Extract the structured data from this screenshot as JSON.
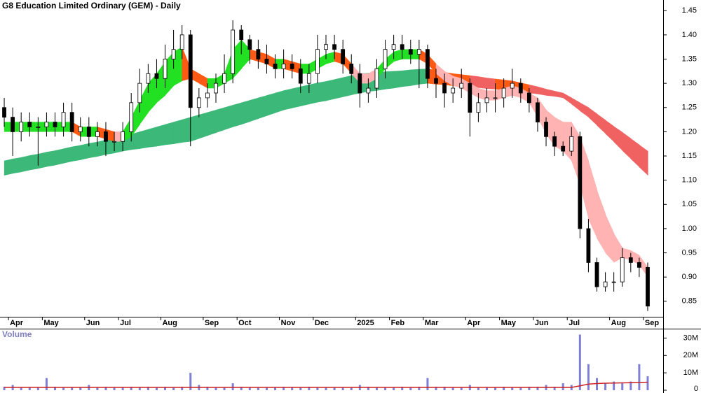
{
  "chart_data": {
    "type": "candlestick",
    "title": "G8 Education Limited Ordinary (GEM) - Daily",
    "categories": [
      null,
      "Apr",
      null,
      null,
      null,
      "May",
      null,
      null,
      null,
      null,
      "Jun",
      null,
      null,
      null,
      "Jul",
      null,
      null,
      null,
      null,
      "Aug",
      null,
      null,
      null,
      null,
      "Sep",
      null,
      null,
      null,
      "Oct",
      null,
      null,
      null,
      null,
      "Nov",
      null,
      null,
      null,
      "Dec",
      null,
      null,
      null,
      null,
      "2025",
      null,
      null,
      null,
      "Feb",
      null,
      null,
      null,
      "Mar",
      null,
      null,
      null,
      null,
      "Apr",
      null,
      null,
      null,
      "May",
      null,
      null,
      null,
      "Jun",
      null,
      null,
      null,
      "Jul",
      null,
      null,
      null,
      null,
      "Aug",
      null,
      null,
      null,
      "Sep"
    ],
    "open": [
      1.25,
      1.23,
      1.2,
      1.22,
      1.21,
      1.21,
      1.22,
      1.21,
      1.24,
      1.2,
      1.21,
      1.19,
      1.2,
      1.18,
      1.18,
      1.2,
      1.26,
      1.3,
      1.32,
      1.31,
      1.35,
      1.37,
      1.4,
      1.25,
      1.27,
      1.28,
      1.3,
      1.32,
      1.41,
      1.39,
      1.37,
      1.35,
      1.34,
      1.33,
      1.34,
      1.33,
      1.3,
      1.32,
      1.37,
      1.38,
      1.37,
      1.34,
      1.32,
      1.28,
      1.29,
      1.33,
      1.37,
      1.38,
      1.37,
      1.36,
      1.37,
      1.31,
      1.3,
      1.28,
      1.29,
      1.3,
      1.24,
      1.26,
      1.27,
      1.27,
      1.29,
      1.3,
      1.28,
      1.26,
      1.22,
      1.19,
      1.17,
      1.16,
      1.19,
      1.0,
      0.93,
      0.88,
      0.89,
      0.89,
      0.94,
      0.93,
      0.92
    ],
    "high": [
      1.27,
      1.25,
      1.24,
      1.24,
      1.23,
      1.24,
      1.24,
      1.26,
      1.26,
      1.23,
      1.23,
      1.22,
      1.22,
      1.2,
      1.22,
      1.28,
      1.33,
      1.34,
      1.35,
      1.38,
      1.41,
      1.42,
      1.41,
      1.29,
      1.3,
      1.32,
      1.36,
      1.43,
      1.42,
      1.4,
      1.39,
      1.38,
      1.36,
      1.37,
      1.36,
      1.35,
      1.34,
      1.4,
      1.4,
      1.4,
      1.39,
      1.36,
      1.34,
      1.31,
      1.35,
      1.39,
      1.4,
      1.4,
      1.39,
      1.39,
      1.38,
      1.33,
      1.32,
      1.31,
      1.33,
      1.31,
      1.28,
      1.29,
      1.3,
      1.31,
      1.33,
      1.31,
      1.29,
      1.27,
      1.23,
      1.2,
      1.18,
      1.21,
      1.2,
      1.02,
      0.94,
      0.91,
      0.91,
      0.96,
      0.95,
      0.94,
      0.93
    ],
    "low": [
      1.21,
      1.15,
      1.18,
      1.19,
      1.13,
      1.19,
      1.19,
      1.19,
      1.18,
      1.18,
      1.17,
      1.17,
      1.15,
      1.16,
      1.16,
      1.18,
      1.24,
      1.28,
      1.29,
      1.29,
      1.33,
      1.35,
      1.17,
      1.23,
      1.25,
      1.26,
      1.28,
      1.3,
      1.36,
      1.34,
      1.33,
      1.32,
      1.31,
      1.31,
      1.31,
      1.28,
      1.28,
      1.3,
      1.35,
      1.35,
      1.32,
      1.3,
      1.25,
      1.26,
      1.27,
      1.31,
      1.35,
      1.35,
      1.34,
      1.29,
      1.29,
      1.27,
      1.25,
      1.26,
      1.27,
      1.19,
      1.22,
      1.24,
      1.24,
      1.25,
      1.27,
      1.26,
      1.24,
      1.2,
      1.17,
      1.15,
      1.15,
      1.15,
      0.98,
      0.91,
      0.87,
      0.87,
      0.87,
      0.88,
      0.91,
      0.9,
      0.83
    ],
    "close": [
      1.23,
      1.2,
      1.22,
      1.21,
      1.21,
      1.22,
      1.21,
      1.24,
      1.2,
      1.21,
      1.19,
      1.2,
      1.18,
      1.18,
      1.2,
      1.26,
      1.3,
      1.32,
      1.31,
      1.35,
      1.37,
      1.4,
      1.25,
      1.27,
      1.28,
      1.3,
      1.32,
      1.41,
      1.39,
      1.37,
      1.35,
      1.34,
      1.33,
      1.34,
      1.33,
      1.3,
      1.32,
      1.37,
      1.38,
      1.37,
      1.34,
      1.32,
      1.28,
      1.29,
      1.33,
      1.37,
      1.38,
      1.37,
      1.36,
      1.37,
      1.31,
      1.3,
      1.28,
      1.29,
      1.3,
      1.24,
      1.26,
      1.27,
      1.27,
      1.29,
      1.3,
      1.28,
      1.26,
      1.22,
      1.19,
      1.17,
      1.16,
      1.19,
      1.0,
      0.93,
      0.88,
      0.89,
      0.89,
      0.94,
      0.93,
      0.92,
      0.84
    ],
    "up_color": "#ffffff",
    "down_color": "#000000",
    "wick_color": "#000000",
    "ylim": [
      0.818,
      1.472
    ],
    "yticks": [
      1.45,
      {
        "value": 1.4,
        "label": "1.40"
      },
      1.35,
      {
        "value": 1.3,
        "label": "1.30"
      },
      1.25,
      {
        "value": 1.2,
        "label": "1.20"
      },
      1.15,
      {
        "value": 1.1,
        "label": "1.10"
      },
      1.05,
      {
        "value": 1.0,
        "label": "1.00"
      },
      0.95,
      {
        "value": 0.9,
        "label": "0.90"
      },
      0.85
    ],
    "short_mma": {
      "upper": [
        1.22,
        1.22,
        1.22,
        1.22,
        1.22,
        1.22,
        1.22,
        1.22,
        1.22,
        1.21,
        1.21,
        1.21,
        1.205,
        1.2,
        1.2,
        1.23,
        1.265,
        1.3,
        1.32,
        1.345,
        1.365,
        1.375,
        1.33,
        1.32,
        1.31,
        1.31,
        1.32,
        1.37,
        1.39,
        1.37,
        1.365,
        1.36,
        1.35,
        1.35,
        1.345,
        1.34,
        1.34,
        1.35,
        1.36,
        1.365,
        1.36,
        1.34,
        1.32,
        1.32,
        1.33,
        1.35,
        1.365,
        1.37,
        1.37,
        1.37,
        1.36,
        1.34,
        1.325,
        1.315,
        1.31,
        1.3,
        1.29,
        1.285,
        1.285,
        1.29,
        1.295,
        1.29,
        1.28,
        1.27,
        1.245,
        1.23,
        1.22,
        1.22,
        1.19,
        1.14,
        1.08,
        1.03,
        0.99,
        0.96,
        0.955,
        0.945,
        0.92
      ],
      "lower": [
        1.2,
        1.2,
        1.2,
        1.2,
        1.2,
        1.2,
        1.2,
        1.2,
        1.2,
        1.19,
        1.19,
        1.19,
        1.185,
        1.18,
        1.18,
        1.19,
        1.215,
        1.24,
        1.26,
        1.275,
        1.295,
        1.305,
        1.31,
        1.3,
        1.29,
        1.29,
        1.3,
        1.31,
        1.33,
        1.35,
        1.345,
        1.34,
        1.33,
        1.33,
        1.325,
        1.32,
        1.32,
        1.33,
        1.34,
        1.345,
        1.34,
        1.32,
        1.3,
        1.3,
        1.31,
        1.33,
        1.345,
        1.35,
        1.35,
        1.35,
        1.34,
        1.32,
        1.305,
        1.295,
        1.29,
        1.28,
        1.27,
        1.265,
        1.265,
        1.27,
        1.275,
        1.27,
        1.26,
        1.23,
        1.195,
        1.17,
        1.16,
        1.14,
        1.09,
        1.02,
        0.98,
        0.95,
        0.93,
        0.94,
        0.935,
        0.925,
        0.9
      ],
      "colors": {
        "rising": "#22e022",
        "falling": "#ff5a14",
        "below": "#ffb3b3"
      }
    },
    "long_mma": {
      "upper": [
        1.14,
        1.144,
        1.147,
        1.151,
        1.154,
        1.158,
        1.161,
        1.165,
        1.169,
        1.172,
        1.176,
        1.179,
        1.183,
        1.186,
        1.19,
        1.195,
        1.2,
        1.205,
        1.21,
        1.215,
        1.22,
        1.225,
        1.23,
        1.235,
        1.24,
        1.245,
        1.25,
        1.255,
        1.26,
        1.265,
        1.27,
        1.275,
        1.28,
        1.285,
        1.289,
        1.293,
        1.297,
        1.301,
        1.304,
        1.308,
        1.312,
        1.316,
        1.32,
        1.321,
        1.323,
        1.324,
        1.325,
        1.326,
        1.328,
        1.329,
        1.33,
        1.327,
        1.323,
        1.32,
        1.318,
        1.316,
        1.314,
        1.311,
        1.309,
        1.307,
        1.305,
        1.301,
        1.297,
        1.293,
        1.288,
        1.284,
        1.28,
        1.27,
        1.26,
        1.25,
        1.237,
        1.224,
        1.211,
        1.199,
        1.186,
        1.173,
        1.16
      ],
      "lower": [
        1.11,
        1.114,
        1.117,
        1.121,
        1.124,
        1.128,
        1.131,
        1.135,
        1.139,
        1.142,
        1.146,
        1.149,
        1.153,
        1.156,
        1.16,
        1.163,
        1.165,
        1.168,
        1.17,
        1.173,
        1.175,
        1.178,
        1.18,
        1.186,
        1.192,
        1.198,
        1.204,
        1.21,
        1.215,
        1.221,
        1.227,
        1.233,
        1.239,
        1.245,
        1.249,
        1.253,
        1.257,
        1.261,
        1.264,
        1.268,
        1.272,
        1.276,
        1.28,
        1.283,
        1.285,
        1.288,
        1.29,
        1.293,
        1.295,
        1.298,
        1.3,
        1.298,
        1.297,
        1.295,
        1.294,
        1.292,
        1.291,
        1.289,
        1.288,
        1.286,
        1.285,
        1.283,
        1.28,
        1.278,
        1.275,
        1.273,
        1.27,
        1.257,
        1.243,
        1.23,
        1.213,
        1.196,
        1.179,
        1.161,
        1.144,
        1.127,
        1.11
      ],
      "colors": {
        "rising": "#3cb878",
        "falling": "#ff5a14",
        "below": "#f06262"
      }
    },
    "volume": {
      "label": "Volume",
      "values": [
        2000000,
        3000000,
        1500000,
        1500000,
        1500000,
        7000000,
        2000000,
        1500000,
        1500000,
        1500000,
        3000000,
        1500000,
        2000000,
        1500000,
        1500000,
        2000000,
        1500000,
        2000000,
        1500000,
        2000000,
        1500000,
        2000000,
        10000000,
        3000000,
        2000000,
        1500000,
        1500000,
        4000000,
        2000000,
        1500000,
        1500000,
        1500000,
        1500000,
        2000000,
        1500000,
        1500000,
        2000000,
        1500000,
        1500000,
        1500000,
        1500000,
        1500000,
        3000000,
        2000000,
        1500000,
        1500000,
        1500000,
        2000000,
        1500000,
        2000000,
        7000000,
        2000000,
        2000000,
        1500000,
        1500000,
        3000000,
        1500000,
        1500000,
        1500000,
        2000000,
        1500000,
        1500000,
        2000000,
        2000000,
        3000000,
        2000000,
        4000000,
        3000000,
        32000000,
        15000000,
        7000000,
        4000000,
        5000000,
        4000000,
        5000000,
        15000000,
        8000000
      ],
      "average": [
        1600000,
        1600000,
        1600000,
        1600000,
        1600000,
        1600000,
        1600000,
        1600000,
        1600000,
        1600000,
        1600000,
        1600000,
        1600000,
        1600000,
        1600000,
        1600000,
        1600000,
        1600000,
        1600000,
        1600000,
        1600000,
        1600000,
        1600000,
        1600000,
        1600000,
        1600000,
        1600000,
        1600000,
        1600000,
        1600000,
        1600000,
        1600000,
        1600000,
        1600000,
        1600000,
        1600000,
        1600000,
        1600000,
        1600000,
        1600000,
        1600000,
        1600000,
        1600000,
        1600000,
        1600000,
        1600000,
        1600000,
        1600000,
        1600000,
        1600000,
        1600000,
        1600000,
        1600000,
        1600000,
        1600000,
        1600000,
        1600000,
        1600000,
        1600000,
        1600000,
        1600000,
        1600000,
        1600000,
        1600000,
        1600000,
        1600000,
        1600000,
        1600000,
        2500000,
        3500000,
        3800000,
        4000000,
        4100000,
        4200000,
        4300000,
        4500000,
        4600000
      ],
      "color": "#7f7fd6",
      "average_color": "#cc2222",
      "ylim": [
        0,
        35000000
      ],
      "yticks": [
        {
          "value": 30000000,
          "label": "30M"
        },
        {
          "value": 20000000,
          "label": "20M"
        },
        {
          "value": 10000000,
          "label": "10M"
        },
        0
      ]
    }
  }
}
